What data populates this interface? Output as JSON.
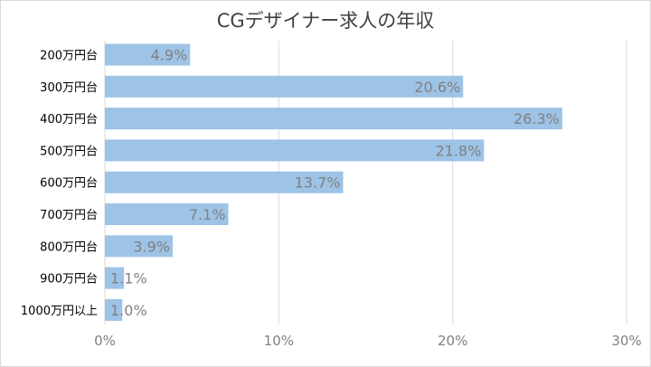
{
  "chart_data": {
    "type": "bar",
    "orientation": "horizontal",
    "title": "CGデザイナー求人の年収",
    "categories": [
      "200万円台",
      "300万円台",
      "400万円台",
      "500万円台",
      "600万円台",
      "700万円台",
      "800万円台",
      "900万円台",
      "1000万円以上"
    ],
    "values": [
      4.9,
      20.6,
      26.3,
      21.8,
      13.7,
      7.1,
      3.9,
      1.1,
      1.0
    ],
    "data_labels": [
      "4.9%",
      "20.6%",
      "26.3%",
      "21.8%",
      "13.7%",
      "7.1%",
      "3.9%",
      "1.1%",
      "1.0%"
    ],
    "x_ticks": [
      "0%",
      "10%",
      "20%",
      "30%"
    ],
    "xlim": [
      0,
      30
    ],
    "grid": true,
    "bar_color": "#9dc3e6",
    "label_color": "#808080"
  }
}
